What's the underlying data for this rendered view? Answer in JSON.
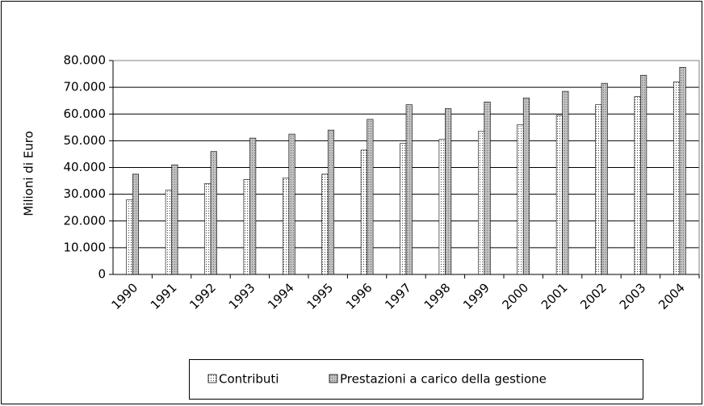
{
  "chart_data": {
    "type": "bar",
    "y_label": "Milioni di Euro",
    "categories": [
      "1990",
      "1991",
      "1992",
      "1993",
      "1994",
      "1995",
      "1996",
      "1997",
      "1998",
      "1999",
      "2000",
      "2001",
      "2002",
      "2003",
      "2004"
    ],
    "series": [
      {
        "name": "Contributi",
        "color": "#ffffff",
        "values": [
          28000,
          31500,
          34000,
          35500,
          36000,
          37500,
          46500,
          49000,
          50500,
          53500,
          56000,
          59500,
          63500,
          66500,
          72000
        ]
      },
      {
        "name": "Prestazioni a carico della gestione",
        "color": "#c0c0c0",
        "values": [
          37500,
          41000,
          46000,
          51000,
          52500,
          54000,
          58000,
          63500,
          62000,
          64500,
          66000,
          68500,
          71500,
          74500,
          77500
        ]
      }
    ],
    "ylim": [
      0,
      80000
    ],
    "yticks": [
      0,
      {
        "value": 10000,
        "label": "10.000"
      },
      {
        "value": 20000,
        "label": "20.000"
      },
      {
        "value": 30000,
        "label": "30.000"
      },
      {
        "value": 40000,
        "label": "40.000"
      },
      {
        "value": 50000,
        "label": "50.000"
      },
      {
        "value": 60000,
        "label": "60.000"
      },
      {
        "value": 70000,
        "label": "70.000"
      },
      {
        "value": 80000,
        "label": "80.000"
      }
    ],
    "grid": true,
    "legend": "bottom"
  }
}
